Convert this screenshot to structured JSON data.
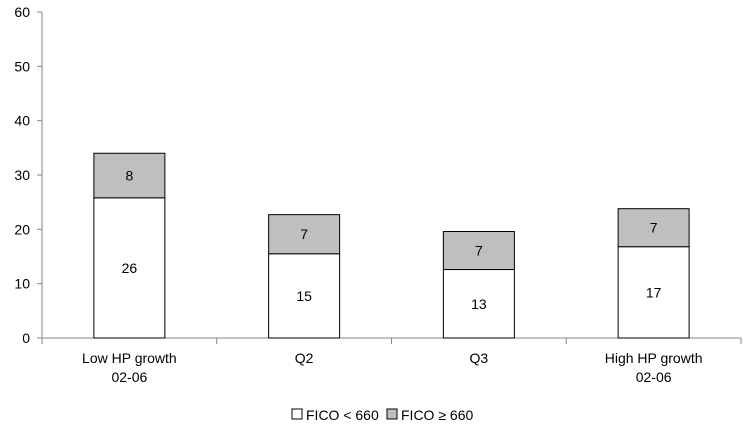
{
  "chart_data": {
    "type": "bar",
    "stacked": true,
    "categories": [
      [
        "Low HP growth",
        "02-06"
      ],
      [
        "Q2"
      ],
      [
        "Q3"
      ],
      [
        "High HP growth",
        "02-06"
      ]
    ],
    "series": [
      {
        "name": "FICO < 660",
        "values": [
          26,
          15,
          13,
          17
        ],
        "totals": [
          25.8,
          15.5,
          12.6,
          16.8
        ],
        "color": "#ffffff"
      },
      {
        "name": "FICO ≥ 660",
        "values": [
          8,
          7,
          7,
          7
        ],
        "totals": [
          8.2,
          7.2,
          7.0,
          7.0
        ],
        "color": "#bfbfbf"
      }
    ],
    "ylim": [
      0,
      60
    ],
    "yticks": [
      0,
      10,
      20,
      30,
      40,
      50,
      60
    ],
    "grid": false,
    "legend": "bottom",
    "title": "",
    "xlabel": "",
    "ylabel": ""
  }
}
